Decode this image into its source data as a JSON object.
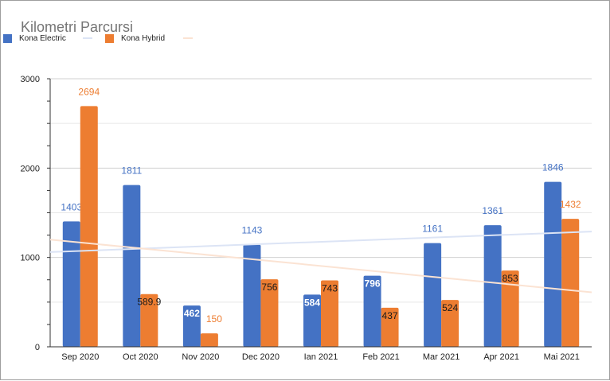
{
  "chart_data": {
    "type": "bar",
    "title": "Kilometri Parcursi",
    "categories": [
      "Sep 2020",
      "Oct 2020",
      "Nov 2020",
      "Dec 2020",
      "Ian 2021",
      "Feb 2021",
      "Mar 2021",
      "Apr 2021",
      "Mai 2021"
    ],
    "series": [
      {
        "name": "Kona Electric",
        "color": "#4472c4",
        "values": [
          1403,
          1811,
          462,
          1143,
          584,
          796,
          1161,
          1361,
          1846
        ],
        "labels": [
          "1403",
          "1811",
          "462",
          "1143",
          "584",
          "796",
          "1161",
          "1361",
          "1846"
        ]
      },
      {
        "name": "Kona Hybrid",
        "color": "#ed7d31",
        "values": [
          2694,
          589.9,
          150,
          756,
          743,
          437,
          524,
          853,
          1432
        ],
        "labels": [
          "2694",
          "589.9",
          "150",
          "756",
          "743",
          "437",
          "524",
          "853",
          "1432"
        ]
      }
    ],
    "trendlines": [
      {
        "series": "Kona Electric",
        "color": "#dce4f5",
        "start": 1060,
        "end": 1290
      },
      {
        "series": "Kona Hybrid",
        "color": "#fbe3d3",
        "start": 1200,
        "end": 610
      }
    ],
    "yticks": [
      "0",
      "1000",
      "2000",
      "3000"
    ],
    "ylim": [
      0,
      3000
    ],
    "grid": true,
    "legend": "top-left"
  }
}
